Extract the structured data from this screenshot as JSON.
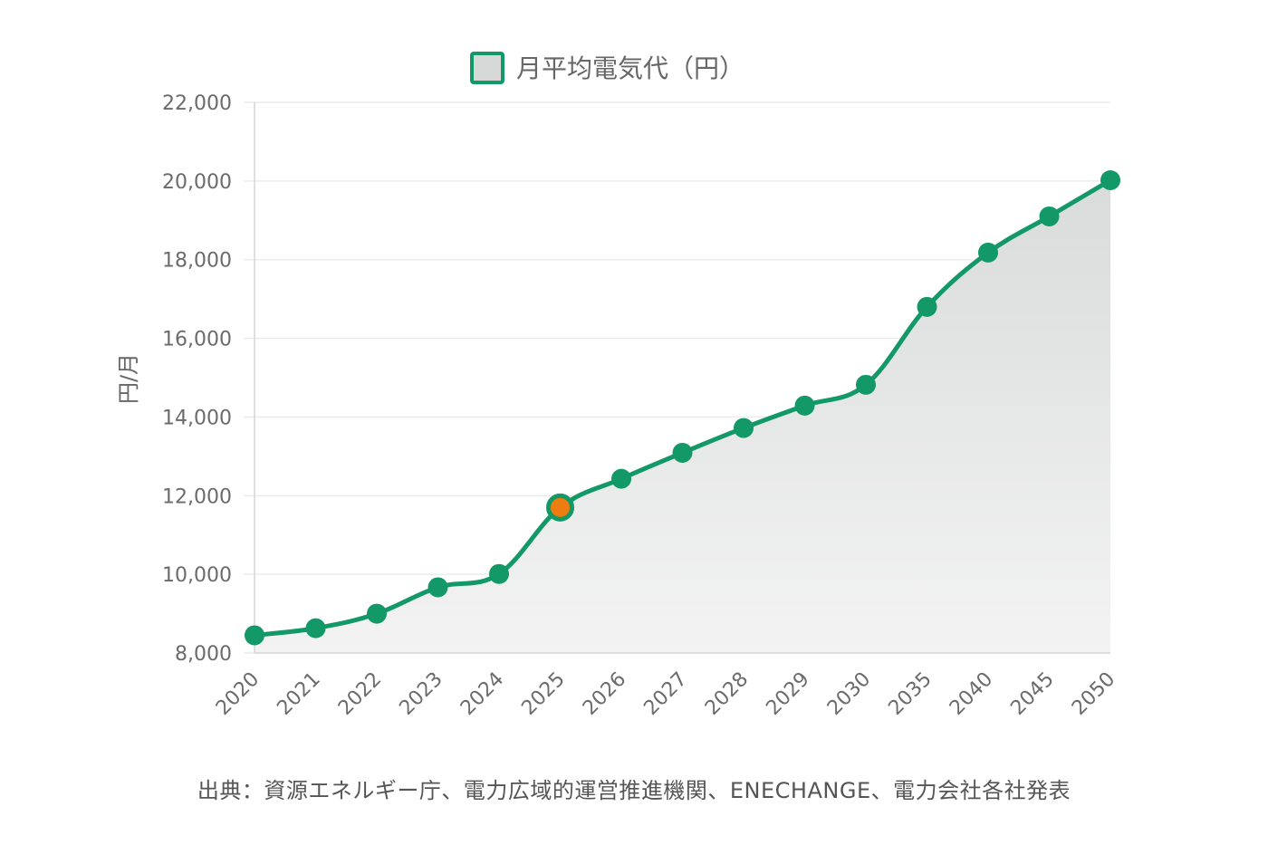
{
  "chart_data": {
    "type": "area",
    "categories": [
      "2020",
      "2021",
      "2022",
      "2023",
      "2024",
      "2025",
      "2026",
      "2027",
      "2028",
      "2029",
      "2030",
      "2035",
      "2040",
      "2045",
      "2050"
    ],
    "series": [
      {
        "name": "月平均電気代（円）",
        "values": [
          8450,
          8630,
          9000,
          9670,
          10010,
          11700,
          12430,
          13090,
          13720,
          14290,
          14820,
          16800,
          18180,
          19100,
          20020
        ],
        "color": "#139867",
        "fill_gradient": [
          "#d9dcdb",
          "#f3f3f3"
        ],
        "highlight_index": 5,
        "highlight_color": "#ee7d11"
      }
    ],
    "ylabel": "円/月",
    "ylim": [
      8000,
      22000
    ],
    "yticks": [
      8000,
      10000,
      12000,
      14000,
      16000,
      18000,
      20000,
      22000
    ],
    "ytick_labels": [
      "8,000",
      "10,000",
      "12,000",
      "14,000",
      "16,000",
      "18,000",
      "20,000",
      "22,000"
    ],
    "grid": true,
    "legend_position": "top-center"
  },
  "source_note": "出典：資源エネルギー庁、電力広域的運営推進機関、ENECHANGE、電力会社各社発表"
}
